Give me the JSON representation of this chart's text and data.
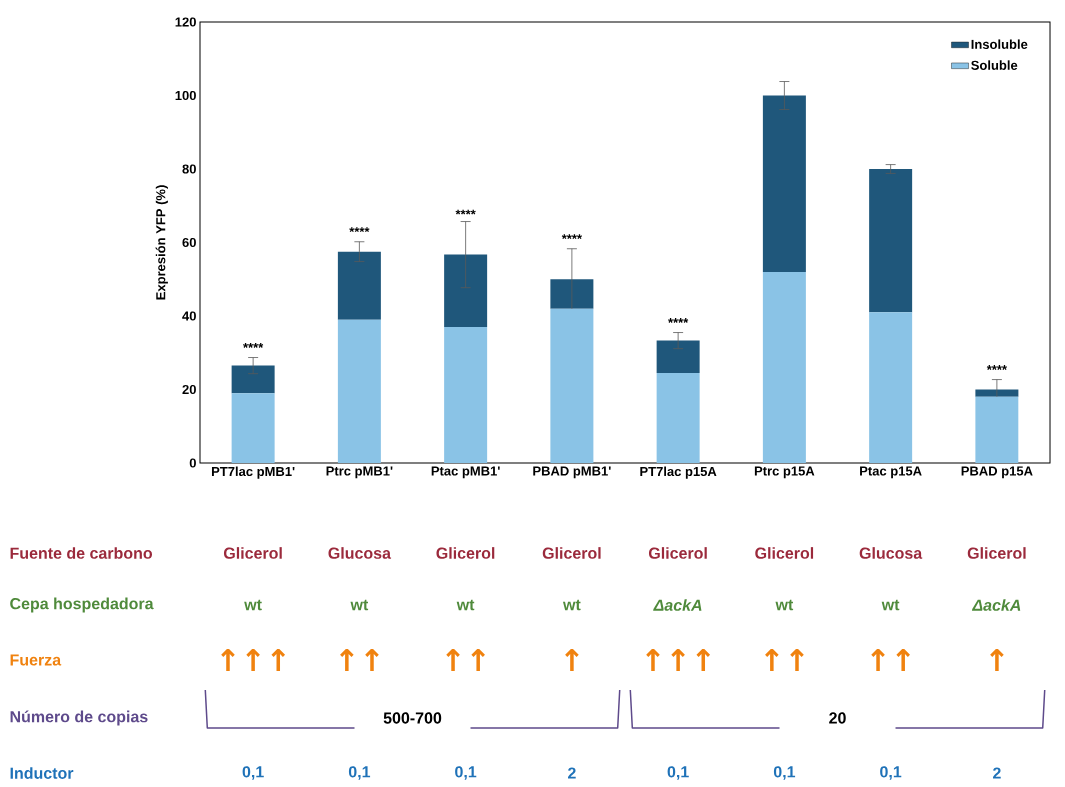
{
  "chart_data": {
    "type": "bar",
    "stacked": true,
    "ylabel": "Expresión YFP (%)",
    "categories": [
      "PT7lac pMB1'",
      "Ptrc pMB1'",
      "Ptac pMB1'",
      "PBAD pMB1'",
      "PT7lac p15A",
      "Ptrc p15A",
      "Ptac p15A",
      "PBAD p15A"
    ],
    "series": [
      {
        "name": "Soluble",
        "color": "#8ac3e6",
        "values": [
          19,
          39,
          37,
          42,
          24.5,
          52,
          41,
          18
        ]
      },
      {
        "name": "Insoluble",
        "color": "#1f577b",
        "values": [
          7.5,
          18.5,
          19.7,
          8,
          8.8,
          48,
          39,
          2
        ],
        "errors": [
          2.2,
          2.7,
          9,
          8.3,
          2.2,
          3.8,
          1.2,
          2.7
        ],
        "value_labels": [
          "****",
          "****",
          "****",
          "****",
          "****",
          null,
          null,
          "****"
        ]
      }
    ],
    "ylim": [
      0,
      120
    ],
    "yticks": [
      0,
      20,
      40,
      60,
      80,
      100,
      120
    ],
    "grid": false,
    "legend": "top right",
    "annotations": [
      "Fuente de carbono",
      "Glicerol",
      "Glucosa",
      "Glicerol",
      "Glicerol",
      "Glicerol",
      "Glicerol",
      "Glucosa",
      "Glicerol",
      "Cepa hospedadora",
      "wt",
      "wt",
      "wt",
      "wt",
      "*ΔackA*",
      "wt",
      "wt",
      "*ΔackA*",
      "Fuerza",
      "↑↑↑",
      "↑↑",
      "↑↑",
      "↑",
      "↑↑↑",
      "↑↑",
      "↑↑",
      "↑",
      "Número de copias",
      "500-700",
      "20",
      "Inductor",
      "0,1",
      "0,1",
      "0,1",
      "2",
      "0,1",
      "0,1",
      "0,1",
      "2"
    ]
  }
}
